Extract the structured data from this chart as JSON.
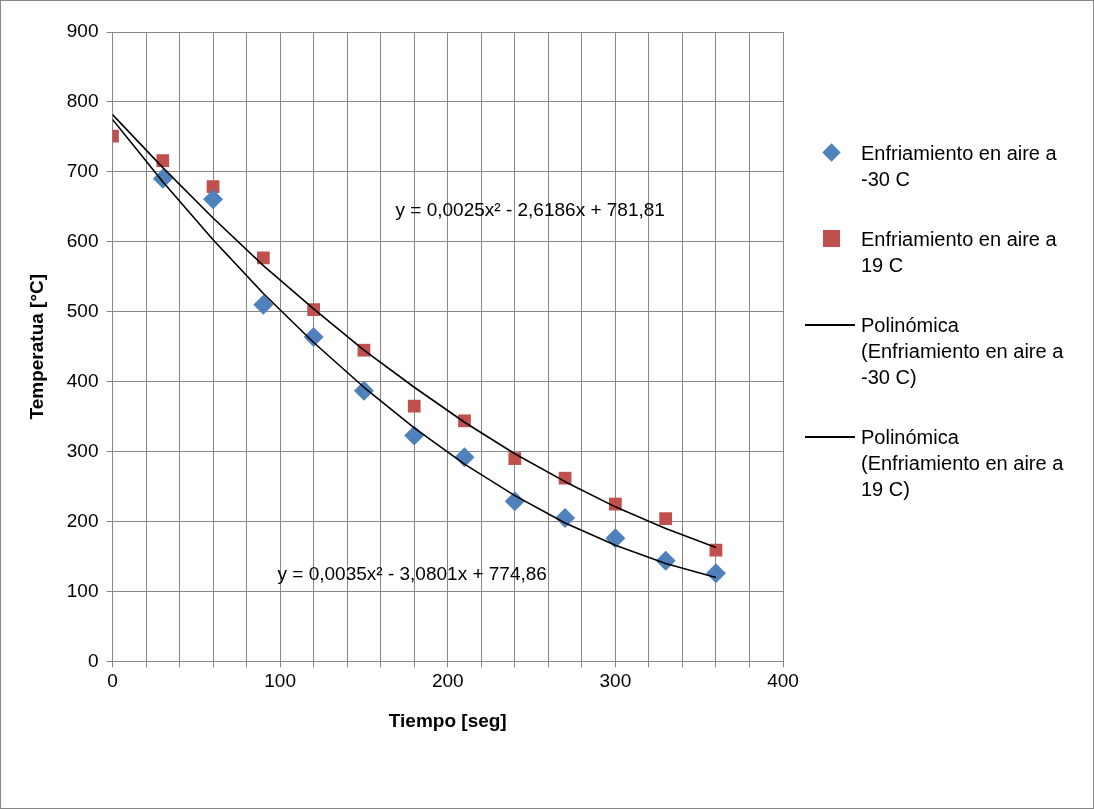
{
  "chart_data": {
    "type": "scatter",
    "xlabel": "Tiempo [seg]",
    "ylabel": "Temperatua [°C]",
    "xlim": [
      0,
      400
    ],
    "ylim": [
      0,
      900
    ],
    "xticks": [
      0,
      {
        "value": 20,
        "label": null
      },
      {
        "value": 40,
        "label": null
      },
      {
        "value": 60,
        "label": null
      },
      {
        "value": 80,
        "label": null
      },
      100,
      {
        "value": 120,
        "label": null
      },
      {
        "value": 140,
        "label": null
      },
      {
        "value": 160,
        "label": null
      },
      {
        "value": 180,
        "label": null
      },
      200,
      {
        "value": 220,
        "label": null
      },
      {
        "value": 240,
        "label": null
      },
      {
        "value": 260,
        "label": null
      },
      {
        "value": 280,
        "label": null
      },
      300,
      {
        "value": 320,
        "label": null
      },
      {
        "value": 340,
        "label": null
      },
      {
        "value": 360,
        "label": null
      },
      {
        "value": 380,
        "label": null
      },
      400
    ],
    "yticks": [
      0,
      100,
      200,
      300,
      400,
      500,
      600,
      700,
      800,
      900
    ],
    "grid": true,
    "legend": "right",
    "x": [
      0,
      30,
      60,
      90,
      120,
      150,
      180,
      210,
      240,
      270,
      300,
      330,
      360
    ],
    "series": [
      {
        "name": "Enfriamiento en aire a -30 C",
        "type": "scatter",
        "marker": "diamond",
        "color": "#4f81bd",
        "values": [
          null,
          690,
          661,
          510,
          464,
          387,
          323,
          292,
          229,
          205,
          176,
          144,
          126
        ]
      },
      {
        "name": "Enfriamiento en aire a 19 C",
        "type": "scatter",
        "marker": "square",
        "color": "#c0504d",
        "values": [
          751,
          716,
          679,
          577,
          503,
          445,
          365,
          344,
          290,
          262,
          225,
          204,
          159
        ]
      },
      {
        "name": "Polinómica (Enfriamiento en aire a -30 C)",
        "type": "line",
        "marker": "none",
        "color": "#000000",
        "x": [
          0,
          30,
          60,
          90,
          120,
          150,
          180,
          210,
          240,
          270,
          300,
          330,
          360
        ],
        "values": [
          775,
          686,
          603,
          526,
          456,
          392,
          334,
          282,
          237,
          198,
          166,
          140,
          120
        ]
      },
      {
        "name": "Polinómica (Enfriamiento en aire a 19 C)",
        "type": "line",
        "marker": "none",
        "color": "#000000",
        "x": [
          0,
          30,
          60,
          90,
          120,
          150,
          180,
          210,
          240,
          270,
          300,
          330,
          360
        ],
        "values": [
          782,
          706,
          634,
          566,
          504,
          445,
          392,
          342,
          297,
          257,
          221,
          190,
          163
        ]
      }
    ],
    "annotations": [
      "y = 0,0025x² - 2,6186x + 781,81",
      "y = 0,0035x² - 3,0801x + 774,86"
    ]
  }
}
